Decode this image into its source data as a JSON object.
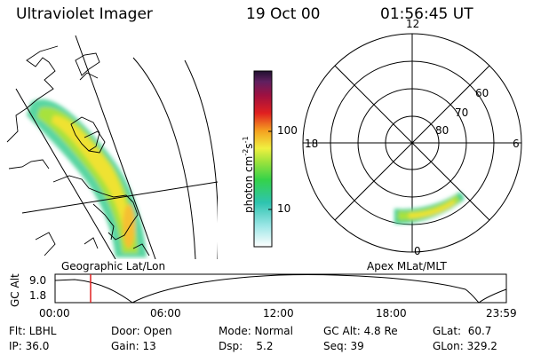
{
  "header": {
    "title": "Ultraviolet Imager",
    "date": "19 Oct 00",
    "time": "01:56:45 UT"
  },
  "colorbar": {
    "label": "photon cm",
    "exp1": "-2",
    "mid": "s",
    "exp2": "-1",
    "ticks": [
      "100",
      "10"
    ]
  },
  "geo_panel": {
    "label": "Geographic Lat/Lon"
  },
  "polar_panel": {
    "label": "Apex MLat/MLT",
    "mlt_labels": [
      "12",
      "18",
      "6",
      "0"
    ],
    "mlat_labels": [
      "60",
      "70",
      "80"
    ]
  },
  "altitude": {
    "axis_label": "GC Alt",
    "y_ticks": [
      "9.0",
      "1.8"
    ],
    "x_ticks": [
      "00:00",
      "06:00",
      "12:00",
      "18:00",
      "23:59"
    ]
  },
  "status": {
    "flt": "Flt: LBHL",
    "ip": "IP: 36.0",
    "door": "Door: Open",
    "gain": "Gain: 13",
    "mode": "Mode: Normal",
    "dsp": "Dsp:    5.2",
    "gcalt": "GC Alt: 4.8 Re",
    "seq": "Seq: 39",
    "glat": "GLat:  60.7",
    "glon": "GLon: 329.2"
  },
  "colors": {
    "aurora_low": "#2ecf8f",
    "aurora_mid": "#a8e63a",
    "aurora_high": "#f0e030",
    "marker": "#e02020"
  }
}
